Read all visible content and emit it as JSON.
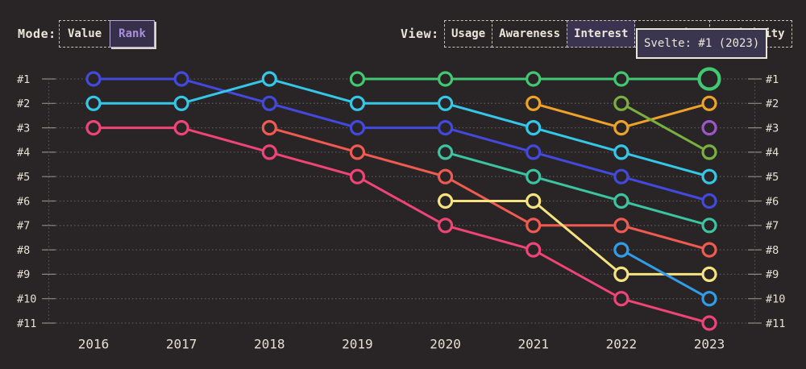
{
  "theme": {
    "background": "#292425",
    "grid_color": "#5c5657",
    "tick_color": "#8e8880",
    "axis_text_color": "#e6e0d3",
    "cream": "#ece6da",
    "accent_purple_text": "#a68fdb",
    "accent_purple_border": "#b9aae0",
    "selected_fill": "#3a3450",
    "tooltip_bg": "#3b3650",
    "tooltip_border": "#ece6d8"
  },
  "header": {
    "mode": {
      "label": "Mode:",
      "options": [
        {
          "label": "Value",
          "selected": false
        },
        {
          "label": "Rank",
          "selected": true
        }
      ]
    },
    "view": {
      "label": "View:",
      "options": [
        {
          "label": "Usage",
          "selected": false
        },
        {
          "label": "Awareness",
          "selected": false
        },
        {
          "label": "Interest",
          "selected": true
        },
        {
          "label": "Retention",
          "selected": false
        },
        {
          "label": "Positivity",
          "selected": false
        }
      ]
    }
  },
  "tooltip": {
    "text": "Svelte: #1 (2023)"
  },
  "chart_data": {
    "type": "line",
    "subtype": "bump-chart-rankings",
    "title": "",
    "xlabel": "",
    "ylabel": "rank (#1 best, axis inverted, labels on both sides)",
    "grid": "dotted horizontal lines per rank",
    "x_categories": [
      "2016",
      "2017",
      "2018",
      "2019",
      "2020",
      "2021",
      "2022",
      "2023"
    ],
    "y_tick_labels": [
      "#1",
      "#2",
      "#3",
      "#4",
      "#5",
      "#6",
      "#7",
      "#8",
      "#9",
      "#10",
      "#11"
    ],
    "highlight": {
      "series": "svelte",
      "year": "2023",
      "note": "enlarged marker, tooltip shown"
    },
    "series": [
      {
        "id": "pink",
        "color": "#ee4477",
        "ranks": {
          "2016": 3,
          "2017": 3,
          "2018": 4,
          "2019": 5,
          "2020": 7,
          "2021": 8,
          "2022": 10,
          "2023": 11
        }
      },
      {
        "id": "blue",
        "color": "#4449dd",
        "ranks": {
          "2016": 1,
          "2017": 1,
          "2018": 2,
          "2019": 3,
          "2020": 3,
          "2021": 4,
          "2022": 5,
          "2023": 6
        }
      },
      {
        "id": "cyan",
        "color": "#35c7e8",
        "ranks": {
          "2016": 2,
          "2017": 2,
          "2018": 1,
          "2019": 2,
          "2020": 2,
          "2021": 3,
          "2022": 4,
          "2023": 5
        }
      },
      {
        "id": "salmon",
        "color": "#ef5b51",
        "ranks": {
          "2018": 3,
          "2019": 4,
          "2020": 5,
          "2021": 7,
          "2022": 7,
          "2023": 8
        }
      },
      {
        "id": "teal",
        "color": "#3cc3a0",
        "ranks": {
          "2020": 4,
          "2021": 5,
          "2022": 6,
          "2023": 7
        }
      },
      {
        "id": "yellow",
        "color": "#f4e37e",
        "ranks": {
          "2020": 6,
          "2021": 6,
          "2022": 9,
          "2023": 9
        }
      },
      {
        "id": "orange",
        "color": "#eda229",
        "ranks": {
          "2021": 2,
          "2022": 3,
          "2023": 2
        }
      },
      {
        "id": "olive",
        "color": "#78b13f",
        "ranks": {
          "2022": 2,
          "2023": 4
        }
      },
      {
        "id": "lightblue",
        "color": "#319de8",
        "ranks": {
          "2022": 8,
          "2023": 10
        }
      },
      {
        "id": "purple",
        "color": "#9d57c9",
        "ranks": {
          "2023": 3
        }
      },
      {
        "id": "svelte",
        "color": "#42c873",
        "ranks": {
          "2019": 1,
          "2020": 1,
          "2021": 1,
          "2022": 1,
          "2023": 1
        }
      }
    ]
  }
}
